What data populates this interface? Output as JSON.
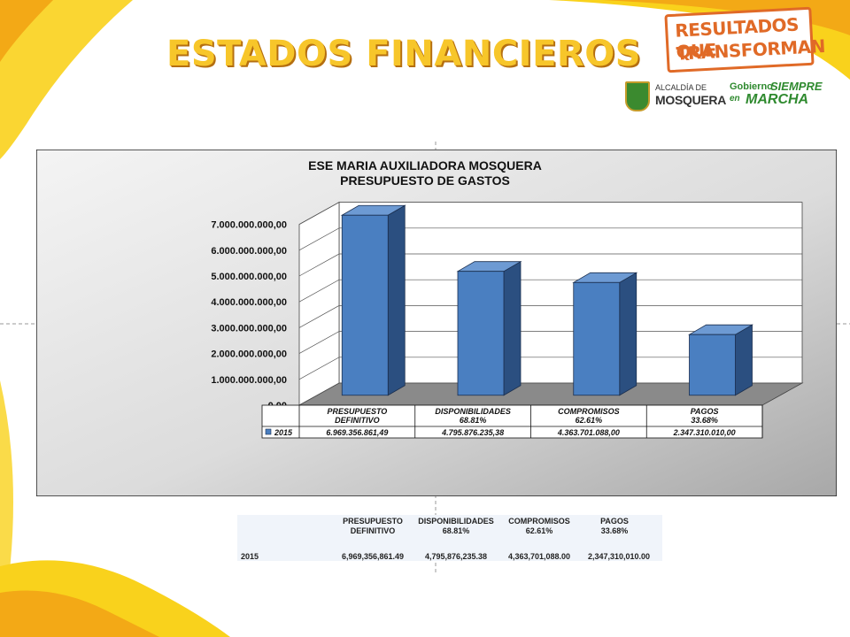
{
  "page": {
    "title": "ESTADOS FINANCIEROS",
    "badge_line1": "RESULTADOS QUE",
    "badge_line2": "TRANSFORMAN",
    "alcaldia_line1": "ALCALDÍA DE",
    "alcaldia_line2": "MOSQUERA",
    "gobierno_1": "Gobierno",
    "gobierno_2": "SIEMPRE",
    "gobierno_3": "en",
    "gobierno_4": "MARCHA",
    "colors": {
      "title": "#f7c62a",
      "accent_yellow": "#f9d21c",
      "accent_orange": "#e06a27",
      "bar": "#4a7fc1"
    }
  },
  "chart_data": {
    "type": "bar",
    "title": "ESE MARIA AUXILIADORA MOSQUERA",
    "subtitle": "PRESUPUESTO DE GASTOS",
    "categories": [
      "PRESUPUESTO DEFINITIVO",
      "DISPONIBILIDADES 68.81%",
      "COMPROMISOS 62.61%",
      "PAGOS 33.68%"
    ],
    "category_lines": [
      [
        "PRESUPUESTO",
        "DEFINITIVO"
      ],
      [
        "DISPONIBILIDADES",
        "68.81%"
      ],
      [
        "COMPROMISOS",
        "62.61%"
      ],
      [
        "PAGOS",
        "33.68%"
      ]
    ],
    "series": [
      {
        "name": "2015",
        "values": [
          6969356861.49,
          4795876235.38,
          4363701088.0,
          2347310010.0
        ]
      }
    ],
    "table_values": [
      "6.969.356.861,49",
      "4.795.876.235,38",
      "4.363.701.088,00",
      "2.347.310.010,00"
    ],
    "yticks": [
      "0,00",
      "1.000.000.000,00",
      "2.000.000.000,00",
      "3.000.000.000,00",
      "4.000.000.000,00",
      "5.000.000.000,00",
      "6.000.000.000,00",
      "7.000.000.000,00"
    ],
    "ylim": [
      0,
      7000000000
    ],
    "grid": true,
    "legend": "data-table",
    "style": "3d-bar"
  },
  "table2": {
    "headers": [
      [
        "PRESUPUESTO",
        "DEFINITIVO"
      ],
      [
        "DISPONIBILIDADES",
        "68.81%"
      ],
      [
        "COMPROMISOS",
        "62.61%"
      ],
      [
        "PAGOS",
        "33.68%"
      ]
    ],
    "row_label": "2015",
    "values": [
      "6,969,356,861.49",
      "4,795,876,235.38",
      "4,363,701,088.00",
      "2,347,310,010.00"
    ]
  }
}
